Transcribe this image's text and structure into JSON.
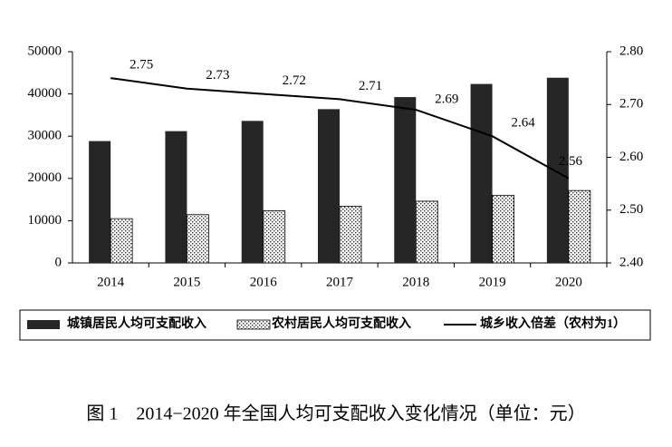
{
  "chart_data": {
    "type": "bar-line",
    "caption": "图 1　2014−2020 年全国人均可支配收入变化情况（单位：元）",
    "categories": [
      "2014",
      "2015",
      "2016",
      "2017",
      "2018",
      "2019",
      "2020"
    ],
    "series": [
      {
        "name": "城镇居民人均可支配收入",
        "type": "bar",
        "color": "#262626",
        "values": [
          28844,
          31195,
          33616,
          36396,
          39251,
          42359,
          43834
        ]
      },
      {
        "name": "农村居民人均可支配收入",
        "type": "bar",
        "color": "#ffffff",
        "pattern": "dots",
        "values": [
          10489,
          11422,
          12363,
          13432,
          14617,
          16021,
          17131
        ]
      },
      {
        "name": "城乡收入倍差（农村为1）",
        "type": "line",
        "axis": "y2",
        "color": "#000000",
        "values": [
          2.75,
          2.73,
          2.72,
          2.71,
          2.69,
          2.64,
          2.56
        ]
      }
    ],
    "ylim": [
      0,
      50000
    ],
    "yticks": [
      0,
      10000,
      20000,
      30000,
      40000,
      50000
    ],
    "y2lim": [
      2.4,
      2.8
    ],
    "y2ticks": [
      {
        "value": 2.4,
        "label": "2.40"
      },
      {
        "value": 2.5,
        "label": "2.50"
      },
      {
        "value": 2.6,
        "label": "2.60"
      },
      {
        "value": 2.7,
        "label": "2.70"
      },
      {
        "value": 2.8,
        "label": "2.80"
      }
    ],
    "legend": "bottom"
  }
}
